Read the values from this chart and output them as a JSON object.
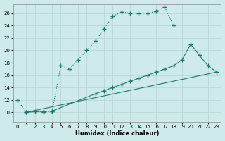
{
  "xlabel": "Humidex (Indice chaleur)",
  "bg_color": "#ceeaea",
  "grid_color": "#b4d4d4",
  "line_color": "#1e7a6e",
  "xlim": [
    -0.5,
    23.5
  ],
  "ylim": [
    8.5,
    27.5
  ],
  "yticks": [
    10,
    12,
    14,
    16,
    18,
    20,
    22,
    24,
    26
  ],
  "xticks": [
    0,
    1,
    2,
    3,
    4,
    5,
    6,
    7,
    8,
    9,
    10,
    11,
    12,
    13,
    14,
    15,
    16,
    17,
    18,
    19,
    20,
    21,
    22,
    23
  ],
  "s1x": [
    0,
    1,
    2,
    3,
    4,
    5,
    6,
    7,
    8,
    9,
    10,
    11,
    12,
    13,
    14,
    15,
    16,
    17,
    18
  ],
  "s1y": [
    12,
    10,
    10.2,
    10,
    10.2,
    17.5,
    17.0,
    18.5,
    20.0,
    21.5,
    23.5,
    25.5,
    26.2,
    26.0,
    26.0,
    26.0,
    26.3,
    27.0,
    24.0
  ],
  "s2x": [
    1,
    3,
    4,
    9,
    10,
    11,
    12,
    13,
    14,
    15,
    16,
    17,
    18,
    19,
    20,
    21,
    22,
    23
  ],
  "s2y": [
    10,
    10.2,
    10.2,
    13.0,
    13.5,
    14.0,
    14.5,
    15.0,
    15.5,
    16.0,
    16.5,
    17.0,
    17.5,
    18.5,
    21.0,
    19.2,
    17.5,
    16.5
  ],
  "s3x": [
    1,
    23
  ],
  "s3y": [
    10,
    16.5
  ]
}
